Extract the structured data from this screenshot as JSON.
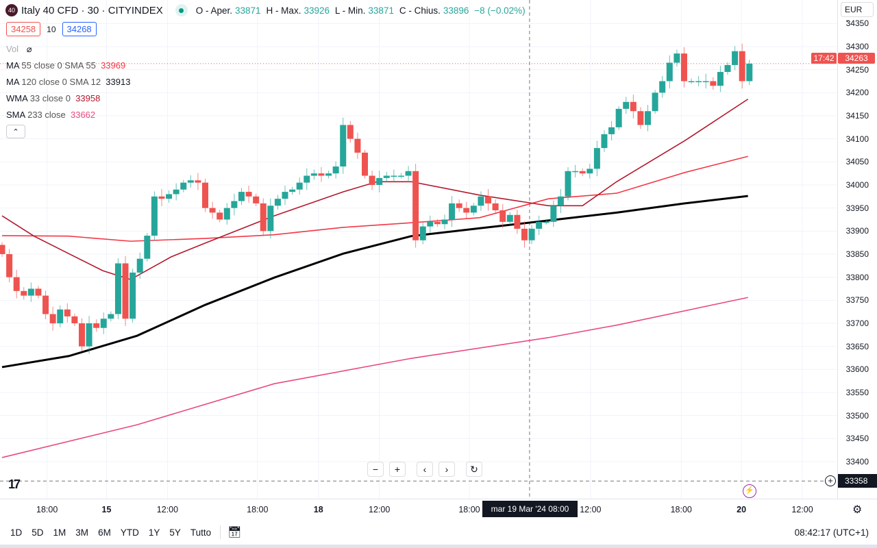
{
  "header": {
    "logo_text": "40",
    "symbol_title": "Italy 40 CFD · 30 · CITYINDEX",
    "open_label": "O - Aper.",
    "open": "33871",
    "high_label": "H - Max.",
    "high": "33926",
    "low_label": "L - Min.",
    "low": "33871",
    "close_label": "C - Chius.",
    "close": "33896",
    "change": "−8 (−0.02%)",
    "bid": "34258",
    "spread": "10",
    "ask": "34268"
  },
  "legend": {
    "vol_label": "Vol",
    "indicators": [
      {
        "name": "MA",
        "params": "55 close 0 SMA 55",
        "value": "33969",
        "color": "#f23645"
      },
      {
        "name": "MA",
        "params": "120 close 0 SMA 12",
        "value": "33913",
        "color": "#000000"
      },
      {
        "name": "WMA",
        "params": "33 close 0",
        "value": "33958",
        "color": "#b2182b"
      },
      {
        "name": "SMA",
        "params": "233 close",
        "value": "33662",
        "color": "#e84a7f"
      }
    ],
    "collapse_icon": "chevron-up-icon"
  },
  "price_axis": {
    "currency": "EUR",
    "last_price": "34263",
    "countdown": "17:42",
    "crosshair_price": "33358"
  },
  "time_axis": {
    "crosshair_time": "mar 19 Mar '24   08:00"
  },
  "zoom_controls": [
    "−",
    "+",
    "‹",
    "›",
    "↻"
  ],
  "bottom_bar": {
    "ranges": [
      "1D",
      "5D",
      "1M",
      "3M",
      "6M",
      "YTD",
      "1Y",
      "5Y",
      "Tutto"
    ],
    "clock": "08:42:17 (UTC+1)"
  },
  "colors": {
    "up": "#26a69a",
    "down": "#ef5350"
  },
  "chart_data": {
    "type": "candlestick",
    "title": "Italy 40 CFD · 30 · CITYINDEX",
    "ylim": [
      33330,
      34400
    ],
    "yticks": [
      34350,
      34300,
      34250,
      34200,
      34150,
      34100,
      34050,
      34000,
      33950,
      33900,
      33850,
      33800,
      33750,
      33700,
      33650,
      33600,
      33550,
      33500,
      33450,
      33400
    ],
    "xticks": [
      {
        "label": "18:00",
        "index": 6.2
      },
      {
        "label": "15",
        "index": 14.4,
        "bold": true
      },
      {
        "label": "12:00",
        "index": 22.8
      },
      {
        "label": "18:00",
        "index": 35.2
      },
      {
        "label": "18",
        "index": 43.6,
        "bold": true
      },
      {
        "label": "12:00",
        "index": 52
      },
      {
        "label": "18:00",
        "index": 64.4
      },
      {
        "label": "12:00",
        "index": 81.1
      },
      {
        "label": "18:00",
        "index": 93.6
      },
      {
        "label": "20",
        "index": 101.9,
        "bold": true
      },
      {
        "label": "12:00",
        "index": 110.3
      }
    ],
    "first_open": 33870,
    "closes": [
      33850,
      33800,
      33770,
      33760,
      33775,
      33760,
      33720,
      33700,
      33730,
      33715,
      33700,
      33650,
      33700,
      33690,
      33710,
      33720,
      33830,
      33710,
      33810,
      33840,
      33890,
      33975,
      33970,
      33980,
      33990,
      34005,
      34010,
      34005,
      33950,
      33940,
      33925,
      33950,
      33965,
      33985,
      33975,
      33960,
      33900,
      33955,
      33970,
      33985,
      33990,
      34005,
      34020,
      34025,
      34020,
      34025,
      34040,
      34130,
      34100,
      34070,
      34020,
      34000,
      34015,
      34020,
      34020,
      34020,
      34030,
      33880,
      33910,
      33920,
      33915,
      33925,
      33960,
      33950,
      33940,
      33955,
      33975,
      33960,
      33945,
      33920,
      33935,
      33905,
      33880,
      33905,
      33920,
      33920,
      33955,
      33975,
      34030,
      34030,
      34025,
      34035,
      34080,
      34110,
      34125,
      34165,
      34180,
      34160,
      34130,
      34160,
      34200,
      34225,
      34265,
      34285,
      34225,
      34225,
      34225,
      34225,
      34215,
      34245,
      34260,
      34290,
      34225,
      34263
    ],
    "series": [
      {
        "name": "MA 55",
        "color": "#f23645",
        "points": [
          [
            0,
            33890
          ],
          [
            9.2,
            33889
          ],
          [
            17.7,
            33878
          ],
          [
            28,
            33884
          ],
          [
            37.5,
            33892
          ],
          [
            47,
            33908
          ],
          [
            56.4,
            33918
          ],
          [
            65.8,
            33929
          ],
          [
            75.3,
            33970
          ],
          [
            84.7,
            33982
          ],
          [
            94.1,
            34027
          ],
          [
            102.8,
            34062
          ]
        ]
      },
      {
        "name": "MA 120 SMA 12",
        "color": "#000000",
        "points": [
          [
            0,
            33605
          ],
          [
            9.2,
            33629
          ],
          [
            18.6,
            33673
          ],
          [
            28,
            33740
          ],
          [
            37.5,
            33799
          ],
          [
            47,
            33851
          ],
          [
            56.4,
            33889
          ],
          [
            65.8,
            33906
          ],
          [
            75.3,
            33923
          ],
          [
            84.7,
            33940
          ],
          [
            94.1,
            33960
          ],
          [
            102.8,
            33976
          ]
        ]
      },
      {
        "name": "WMA 33",
        "color": "#b2182b",
        "points": [
          [
            0,
            33933
          ],
          [
            4.4,
            33889
          ],
          [
            9.2,
            33851
          ],
          [
            13.9,
            33814
          ],
          [
            17.7,
            33795
          ],
          [
            23.3,
            33844
          ],
          [
            28,
            33874
          ],
          [
            37.5,
            33933
          ],
          [
            47,
            33985
          ],
          [
            51.7,
            34007
          ],
          [
            56.4,
            34007
          ],
          [
            65.8,
            33978
          ],
          [
            75.3,
            33955
          ],
          [
            80,
            33955
          ],
          [
            84.7,
            34007
          ],
          [
            94.1,
            34096
          ],
          [
            102.8,
            34186
          ]
        ]
      },
      {
        "name": "SMA 233",
        "color": "#e84a7f",
        "points": [
          [
            0,
            33409
          ],
          [
            18.6,
            33480
          ],
          [
            37.5,
            33569
          ],
          [
            56.4,
            33624
          ],
          [
            75.3,
            33669
          ],
          [
            84.7,
            33696
          ],
          [
            102.8,
            33756
          ]
        ]
      }
    ],
    "last_price_line": 34263,
    "crosshair": {
      "index": 72.7,
      "price": 33358
    }
  }
}
